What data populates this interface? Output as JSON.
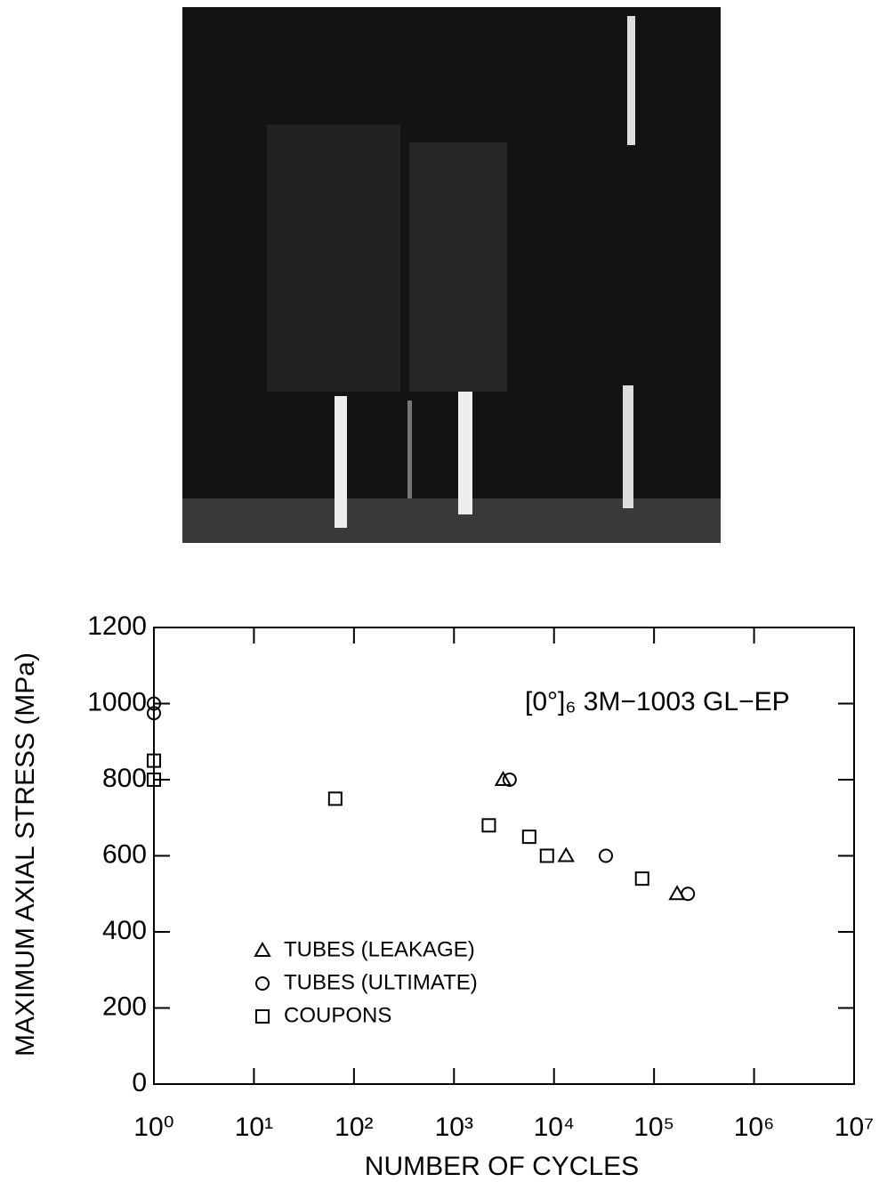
{
  "chart_data": {
    "type": "scatter",
    "annotation": "[0°]₆ 3M−1003 GL−EP",
    "x_label": "NUMBER OF CYCLES",
    "y_label": "MAXIMUM AXIAL STRESS (MPa)",
    "x_scale": "log",
    "xlim": [
      1,
      10000000
    ],
    "xticks": [
      {
        "value": 1,
        "label": "10⁰"
      },
      {
        "value": 10,
        "label": "10¹"
      },
      {
        "value": 100,
        "label": "10²"
      },
      {
        "value": 1000,
        "label": "10³"
      },
      {
        "value": 10000,
        "label": "10⁴"
      },
      {
        "value": 100000,
        "label": "10⁵"
      },
      {
        "value": 1000000,
        "label": "10⁶"
      },
      {
        "value": 10000000,
        "label": "10⁷"
      }
    ],
    "ylim": [
      0,
      1200
    ],
    "yticks": [
      0,
      200,
      400,
      600,
      800,
      1000,
      1200
    ],
    "legend": "lower left",
    "series": [
      {
        "name": "TUBES (LEAKAGE)",
        "marker": "triangle",
        "color": "#000000",
        "x": [
          3100,
          13200,
          170000
        ],
        "values": [
          800,
          600,
          500
        ]
      },
      {
        "name": "TUBES (ULTIMATE)",
        "marker": "circle",
        "color": "#000000",
        "x": [
          1,
          1,
          3600,
          33000,
          218000
        ],
        "values": [
          1000,
          975,
          800,
          600,
          500
        ]
      },
      {
        "name": "COUPONS",
        "marker": "square",
        "color": "#000000",
        "x": [
          1,
          1,
          65,
          2230,
          5650,
          8500,
          76000
        ],
        "values": [
          850,
          800,
          750,
          680,
          650,
          600,
          540
        ]
      }
    ]
  }
}
